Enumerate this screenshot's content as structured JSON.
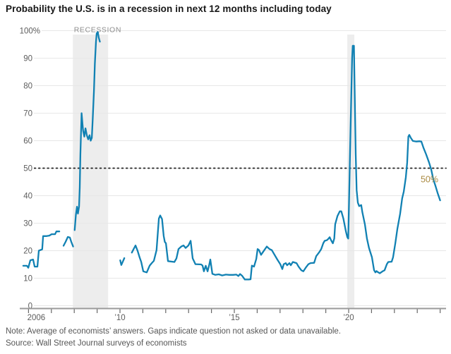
{
  "title": "Probability the U.S. is in a recession in next 12 months including today",
  "footer": {
    "note": "Note: Average of economists’ answers. Gaps indicate question not asked or data unavailable.",
    "source": "Source: Wall Street Journal surveys of economists"
  },
  "colors": {
    "line": "#1181b3",
    "gridline": "#e7e7e7",
    "band": "#ededed",
    "axis": "#9a9a9a",
    "tick": "#686868",
    "axis_label": "#5c5c5c",
    "band_label": "#8e8e8e",
    "reference_line": "#1f1f1f",
    "reference_label": "#aa8a41"
  },
  "chart_data": {
    "type": "line",
    "title": "Probability the U.S. is in a recession in next 12 months including today",
    "grid": "horizontal",
    "legend": "none",
    "y_axis": {
      "range": [
        0,
        100
      ],
      "ticks": [
        {
          "value": 100,
          "label": "100%"
        },
        {
          "value": 90,
          "label": "90"
        },
        {
          "value": 80,
          "label": "80"
        },
        {
          "value": 70,
          "label": "70"
        },
        {
          "value": 60,
          "label": "60"
        },
        {
          "value": 50,
          "label": "50"
        },
        {
          "value": 40,
          "label": "40"
        },
        {
          "value": 30,
          "label": "30"
        },
        {
          "value": 20,
          "label": "20"
        },
        {
          "value": 10,
          "label": "10"
        },
        {
          "value": 0,
          "label": "0"
        }
      ]
    },
    "x_axis": {
      "range": [
        2005.6,
        2024.3
      ],
      "tick_years": {
        "start": 2006,
        "end": 2024,
        "step": 1
      },
      "labels": [
        {
          "year": 2006,
          "label": "2006",
          "anchor_offset": 11
        },
        {
          "year": 2010,
          "label": "’10",
          "anchor_offset": 0
        },
        {
          "year": 2015,
          "label": "’15",
          "anchor_offset": 0
        },
        {
          "year": 2020,
          "label": "’20",
          "anchor_offset": 0
        }
      ]
    },
    "reference_line": {
      "value": 50,
      "label": "50%",
      "style": "dotted"
    },
    "recession_bands": [
      {
        "label": "RECESSION",
        "start": 2007.94,
        "end": 2009.48
      },
      {
        "label": "",
        "start": 2019.94,
        "end": 2020.25
      }
    ],
    "series": [
      {
        "name": "recession-probability",
        "color": "#1181b3",
        "segments": [
          [
            [
              2005.77,
              14.5
            ],
            [
              2005.93,
              14.5
            ],
            [
              2005.99,
              13.8
            ],
            [
              2006.08,
              16.5
            ],
            [
              2006.2,
              16.8
            ],
            [
              2006.27,
              14.2
            ],
            [
              2006.39,
              14.2
            ],
            [
              2006.45,
              20
            ],
            [
              2006.6,
              20.5
            ],
            [
              2006.64,
              25.3
            ],
            [
              2006.79,
              25.3
            ],
            [
              2006.91,
              25.5
            ],
            [
              2007.01,
              26
            ],
            [
              2007.16,
              26
            ],
            [
              2007.22,
              27
            ],
            [
              2007.35,
              27
            ]
          ],
          [
            [
              2007.53,
              21.8
            ],
            [
              2007.62,
              23.2
            ],
            [
              2007.72,
              25
            ],
            [
              2007.81,
              24.8
            ],
            [
              2007.87,
              23.2
            ],
            [
              2007.95,
              21.5
            ]
          ],
          [
            [
              2008.02,
              27.5
            ],
            [
              2008.07,
              33
            ],
            [
              2008.12,
              36
            ],
            [
              2008.16,
              33.5
            ],
            [
              2008.21,
              36
            ],
            [
              2008.24,
              43
            ],
            [
              2008.27,
              55
            ],
            [
              2008.32,
              70
            ],
            [
              2008.36,
              66
            ],
            [
              2008.39,
              63.5
            ],
            [
              2008.44,
              61.5
            ],
            [
              2008.49,
              64.5
            ],
            [
              2008.55,
              62
            ],
            [
              2008.61,
              60.5
            ],
            [
              2008.67,
              62
            ],
            [
              2008.72,
              60
            ],
            [
              2008.77,
              61
            ],
            [
              2008.81,
              68
            ],
            [
              2008.86,
              78
            ],
            [
              2008.9,
              88
            ],
            [
              2008.95,
              96
            ],
            [
              2008.98,
              99
            ],
            [
              2009.03,
              99.5
            ],
            [
              2009.07,
              97.5
            ],
            [
              2009.12,
              96
            ]
          ],
          [
            [
              2010.01,
              16.5
            ],
            [
              2010.06,
              14.8
            ],
            [
              2010.19,
              17.3
            ]
          ],
          [
            [
              2010.52,
              19.3
            ],
            [
              2010.59,
              20.5
            ],
            [
              2010.68,
              21.9
            ],
            [
              2010.77,
              20
            ],
            [
              2010.86,
              17.5
            ],
            [
              2010.93,
              15.9
            ],
            [
              2011.02,
              12.5
            ],
            [
              2011.17,
              12.1
            ],
            [
              2011.3,
              14.6
            ],
            [
              2011.39,
              15.5
            ],
            [
              2011.48,
              16.3
            ],
            [
              2011.6,
              20.2
            ],
            [
              2011.7,
              31.7
            ],
            [
              2011.76,
              32.8
            ],
            [
              2011.84,
              31.5
            ],
            [
              2011.91,
              25.4
            ],
            [
              2011.96,
              23.2
            ],
            [
              2012.01,
              22.7
            ],
            [
              2012.1,
              16.2
            ],
            [
              2012.38,
              15.9
            ],
            [
              2012.47,
              17.2
            ],
            [
              2012.56,
              20.6
            ],
            [
              2012.68,
              21.5
            ],
            [
              2012.78,
              21.9
            ],
            [
              2012.87,
              21
            ],
            [
              2012.99,
              21.9
            ],
            [
              2013.09,
              23.6
            ],
            [
              2013.18,
              17.2
            ],
            [
              2013.3,
              15.1
            ],
            [
              2013.55,
              15
            ],
            [
              2013.61,
              14.6
            ],
            [
              2013.67,
              12.5
            ],
            [
              2013.75,
              14.5
            ],
            [
              2013.83,
              12.5
            ],
            [
              2013.9,
              14.8
            ],
            [
              2013.95,
              16.8
            ],
            [
              2014.04,
              11.6
            ],
            [
              2014.17,
              11.2
            ],
            [
              2014.32,
              11.4
            ],
            [
              2014.47,
              11
            ],
            [
              2014.63,
              11.3
            ],
            [
              2014.78,
              11.2
            ],
            [
              2014.94,
              11.2
            ],
            [
              2015.09,
              11.3
            ],
            [
              2015.18,
              10.8
            ],
            [
              2015.25,
              11.5
            ],
            [
              2015.34,
              10.9
            ],
            [
              2015.46,
              9.5
            ],
            [
              2015.62,
              9.5
            ],
            [
              2015.71,
              9.6
            ],
            [
              2015.77,
              14.6
            ],
            [
              2015.86,
              14.2
            ],
            [
              2015.96,
              17
            ],
            [
              2016.02,
              20.6
            ],
            [
              2016.08,
              20.2
            ],
            [
              2016.17,
              18.5
            ],
            [
              2016.27,
              19.7
            ],
            [
              2016.36,
              20.8
            ],
            [
              2016.42,
              21.5
            ],
            [
              2016.54,
              20.6
            ],
            [
              2016.64,
              20.2
            ],
            [
              2016.73,
              18.9
            ],
            [
              2016.88,
              16.8
            ],
            [
              2017.01,
              15.1
            ],
            [
              2017.1,
              13.3
            ],
            [
              2017.16,
              15.1
            ],
            [
              2017.25,
              15.5
            ],
            [
              2017.31,
              14.7
            ],
            [
              2017.41,
              15.5
            ],
            [
              2017.47,
              14.7
            ],
            [
              2017.56,
              15.9
            ],
            [
              2017.72,
              15.5
            ],
            [
              2017.81,
              14.2
            ],
            [
              2017.93,
              12.9
            ],
            [
              2018.02,
              12.5
            ],
            [
              2018.12,
              13.8
            ],
            [
              2018.24,
              15.1
            ],
            [
              2018.33,
              15.5
            ],
            [
              2018.49,
              15.6
            ],
            [
              2018.58,
              18
            ],
            [
              2018.7,
              19.3
            ],
            [
              2018.8,
              20.6
            ],
            [
              2018.89,
              22.7
            ],
            [
              2018.95,
              23.6
            ],
            [
              2019.04,
              23.8
            ],
            [
              2019.1,
              24.2
            ],
            [
              2019.17,
              24.9
            ],
            [
              2019.23,
              23.8
            ],
            [
              2019.31,
              22.7
            ],
            [
              2019.37,
              24.4
            ],
            [
              2019.41,
              29.6
            ],
            [
              2019.51,
              32.6
            ],
            [
              2019.61,
              34.3
            ],
            [
              2019.68,
              34.3
            ],
            [
              2019.77,
              31.7
            ],
            [
              2019.88,
              27
            ],
            [
              2019.94,
              24.9
            ],
            [
              2019.98,
              24.4
            ],
            [
              2020.01,
              35
            ],
            [
              2020.06,
              55
            ],
            [
              2020.11,
              75
            ],
            [
              2020.15,
              90
            ],
            [
              2020.18,
              94.5
            ],
            [
              2020.23,
              94.5
            ],
            [
              2020.26,
              80
            ],
            [
              2020.31,
              55
            ],
            [
              2020.35,
              42
            ],
            [
              2020.4,
              37.5
            ],
            [
              2020.46,
              36.2
            ],
            [
              2020.55,
              36.6
            ],
            [
              2020.6,
              34
            ],
            [
              2020.71,
              29.6
            ],
            [
              2020.8,
              24.4
            ],
            [
              2020.89,
              21
            ],
            [
              2021.02,
              17.6
            ],
            [
              2021.11,
              12.9
            ],
            [
              2021.17,
              12.1
            ],
            [
              2021.22,
              12.6
            ],
            [
              2021.26,
              12.3
            ],
            [
              2021.36,
              11.8
            ],
            [
              2021.48,
              12.5
            ],
            [
              2021.57,
              12.9
            ],
            [
              2021.67,
              15.1
            ],
            [
              2021.73,
              15.9
            ],
            [
              2021.88,
              16
            ],
            [
              2021.94,
              17.6
            ],
            [
              2022.04,
              22.7
            ],
            [
              2022.13,
              27.9
            ],
            [
              2022.25,
              33.4
            ],
            [
              2022.34,
              39
            ],
            [
              2022.41,
              41.5
            ],
            [
              2022.5,
              46.7
            ],
            [
              2022.56,
              52
            ],
            [
              2022.61,
              61.5
            ],
            [
              2022.65,
              62.1
            ],
            [
              2022.72,
              61
            ],
            [
              2022.81,
              59.9
            ],
            [
              2022.96,
              59.7
            ],
            [
              2023.09,
              59.8
            ],
            [
              2023.18,
              59.7
            ],
            [
              2023.27,
              57.5
            ],
            [
              2023.39,
              55
            ],
            [
              2023.52,
              52
            ],
            [
              2023.61,
              49.5
            ],
            [
              2023.7,
              46
            ],
            [
              2023.8,
              43.5
            ],
            [
              2023.89,
              41
            ],
            [
              2024.0,
              38.3
            ]
          ]
        ]
      }
    ]
  }
}
